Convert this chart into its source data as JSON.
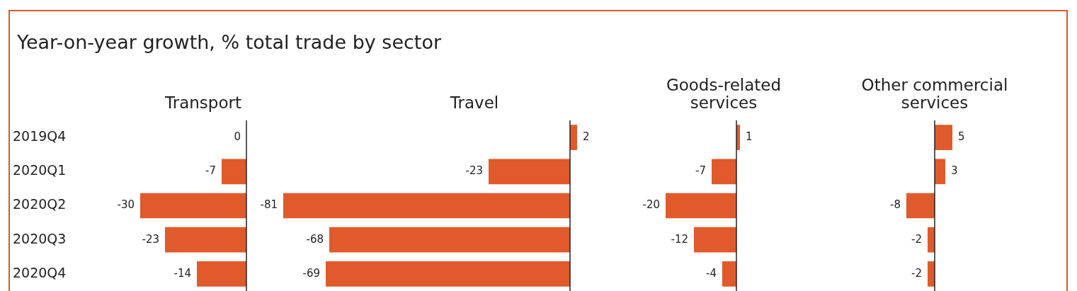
{
  "chart_data": [
    {
      "type": "other",
      "title": "Year-on-year growth, % total trade by sector"
    },
    {
      "type": "bar",
      "orientation": "horizontal",
      "title": "Transport",
      "categories": [
        "2019Q4",
        "2020Q1",
        "2020Q2",
        "2020Q3",
        "2020Q4"
      ],
      "values": [
        0,
        -7,
        -30,
        -23,
        -14
      ],
      "color": "#e05a2b",
      "data_labels": true,
      "tick_labels": "y"
    },
    {
      "type": "bar",
      "orientation": "horizontal",
      "title": "Travel",
      "categories": [
        null,
        null,
        null,
        null,
        null
      ],
      "values": [
        2,
        -23,
        -81,
        -68,
        -69
      ],
      "color": "#e05a2b",
      "data_labels": true,
      "tick_labels": false
    },
    {
      "type": "bar",
      "orientation": "horizontal",
      "title": "Goods-related services",
      "categories": [
        null,
        null,
        null,
        null,
        null
      ],
      "values": [
        1,
        -7,
        -20,
        -12,
        -4
      ],
      "color": "#e05a2b",
      "data_labels": true,
      "tick_labels": false
    },
    {
      "type": "bar",
      "orientation": "horizontal",
      "title": "Other commercial services",
      "categories": [
        null,
        null,
        null,
        null,
        null
      ],
      "values": [
        5,
        3,
        -8,
        -2,
        -2
      ],
      "color": "#e05a2b",
      "data_labels": true,
      "tick_labels": false
    }
  ]
}
